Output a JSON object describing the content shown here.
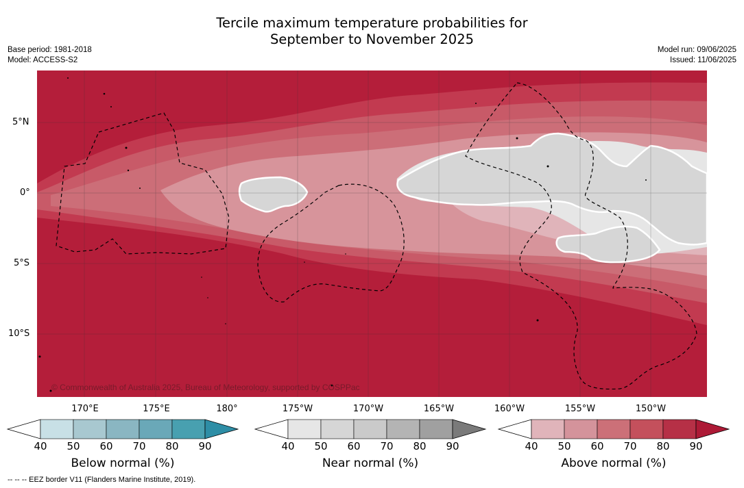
{
  "title": {
    "line1": "Tercile maximum temperature probabilities for",
    "line2": "September to November 2025"
  },
  "meta": {
    "base_period": "Base period: 1981-2018",
    "model": "Model: ACCESS-S2",
    "model_run": "Model run: 09/06/2025",
    "issued": "Issued: 11/06/2025"
  },
  "map": {
    "copyright": "© Commonwealth of Australia 2025, Bureau of Meteorology, supported by COSPPac",
    "lat_labels": [
      "5°N",
      "0°",
      "5°S",
      "10°S"
    ],
    "lon_labels": [
      "170°E",
      "175°E",
      "180°",
      "175°W",
      "170°W",
      "165°W",
      "160°W",
      "155°W",
      "150°W"
    ],
    "colors": {
      "above_90": "#b41e3a",
      "above_80": "#c23a50",
      "above_70": "#c85a68",
      "above_60": "#cc6e78",
      "above_50": "#d7949b",
      "near_40_50": "#e6e6e6",
      "near_50_60": "#d6d6d6"
    }
  },
  "colorbars": [
    {
      "name": "below",
      "title": "Below normal (%)",
      "ticks": [
        "40",
        "50",
        "60",
        "70",
        "80",
        "90"
      ],
      "colors": [
        "#ffffff",
        "#c8e0e6",
        "#a8c8d0",
        "#8ab6c2",
        "#6aa8b8",
        "#48a0b0",
        "#2e8ea6"
      ]
    },
    {
      "name": "near",
      "title": "Near normal (%)",
      "ticks": [
        "40",
        "50",
        "60",
        "70",
        "80",
        "90"
      ],
      "colors": [
        "#ffffff",
        "#e6e6e6",
        "#d6d6d6",
        "#cacaca",
        "#b4b4b4",
        "#a0a0a0",
        "#7a7a7a"
      ]
    },
    {
      "name": "above",
      "title": "Above normal (%)",
      "ticks": [
        "40",
        "50",
        "60",
        "70",
        "80",
        "90"
      ],
      "colors": [
        "#ffffff",
        "#e0b4ba",
        "#d4939b",
        "#cc7078",
        "#c4505c",
        "#b63046",
        "#ad1a36"
      ]
    }
  ],
  "footnote": "--  --  -- EEZ border V11 (Flanders Marine Institute, 2019)."
}
